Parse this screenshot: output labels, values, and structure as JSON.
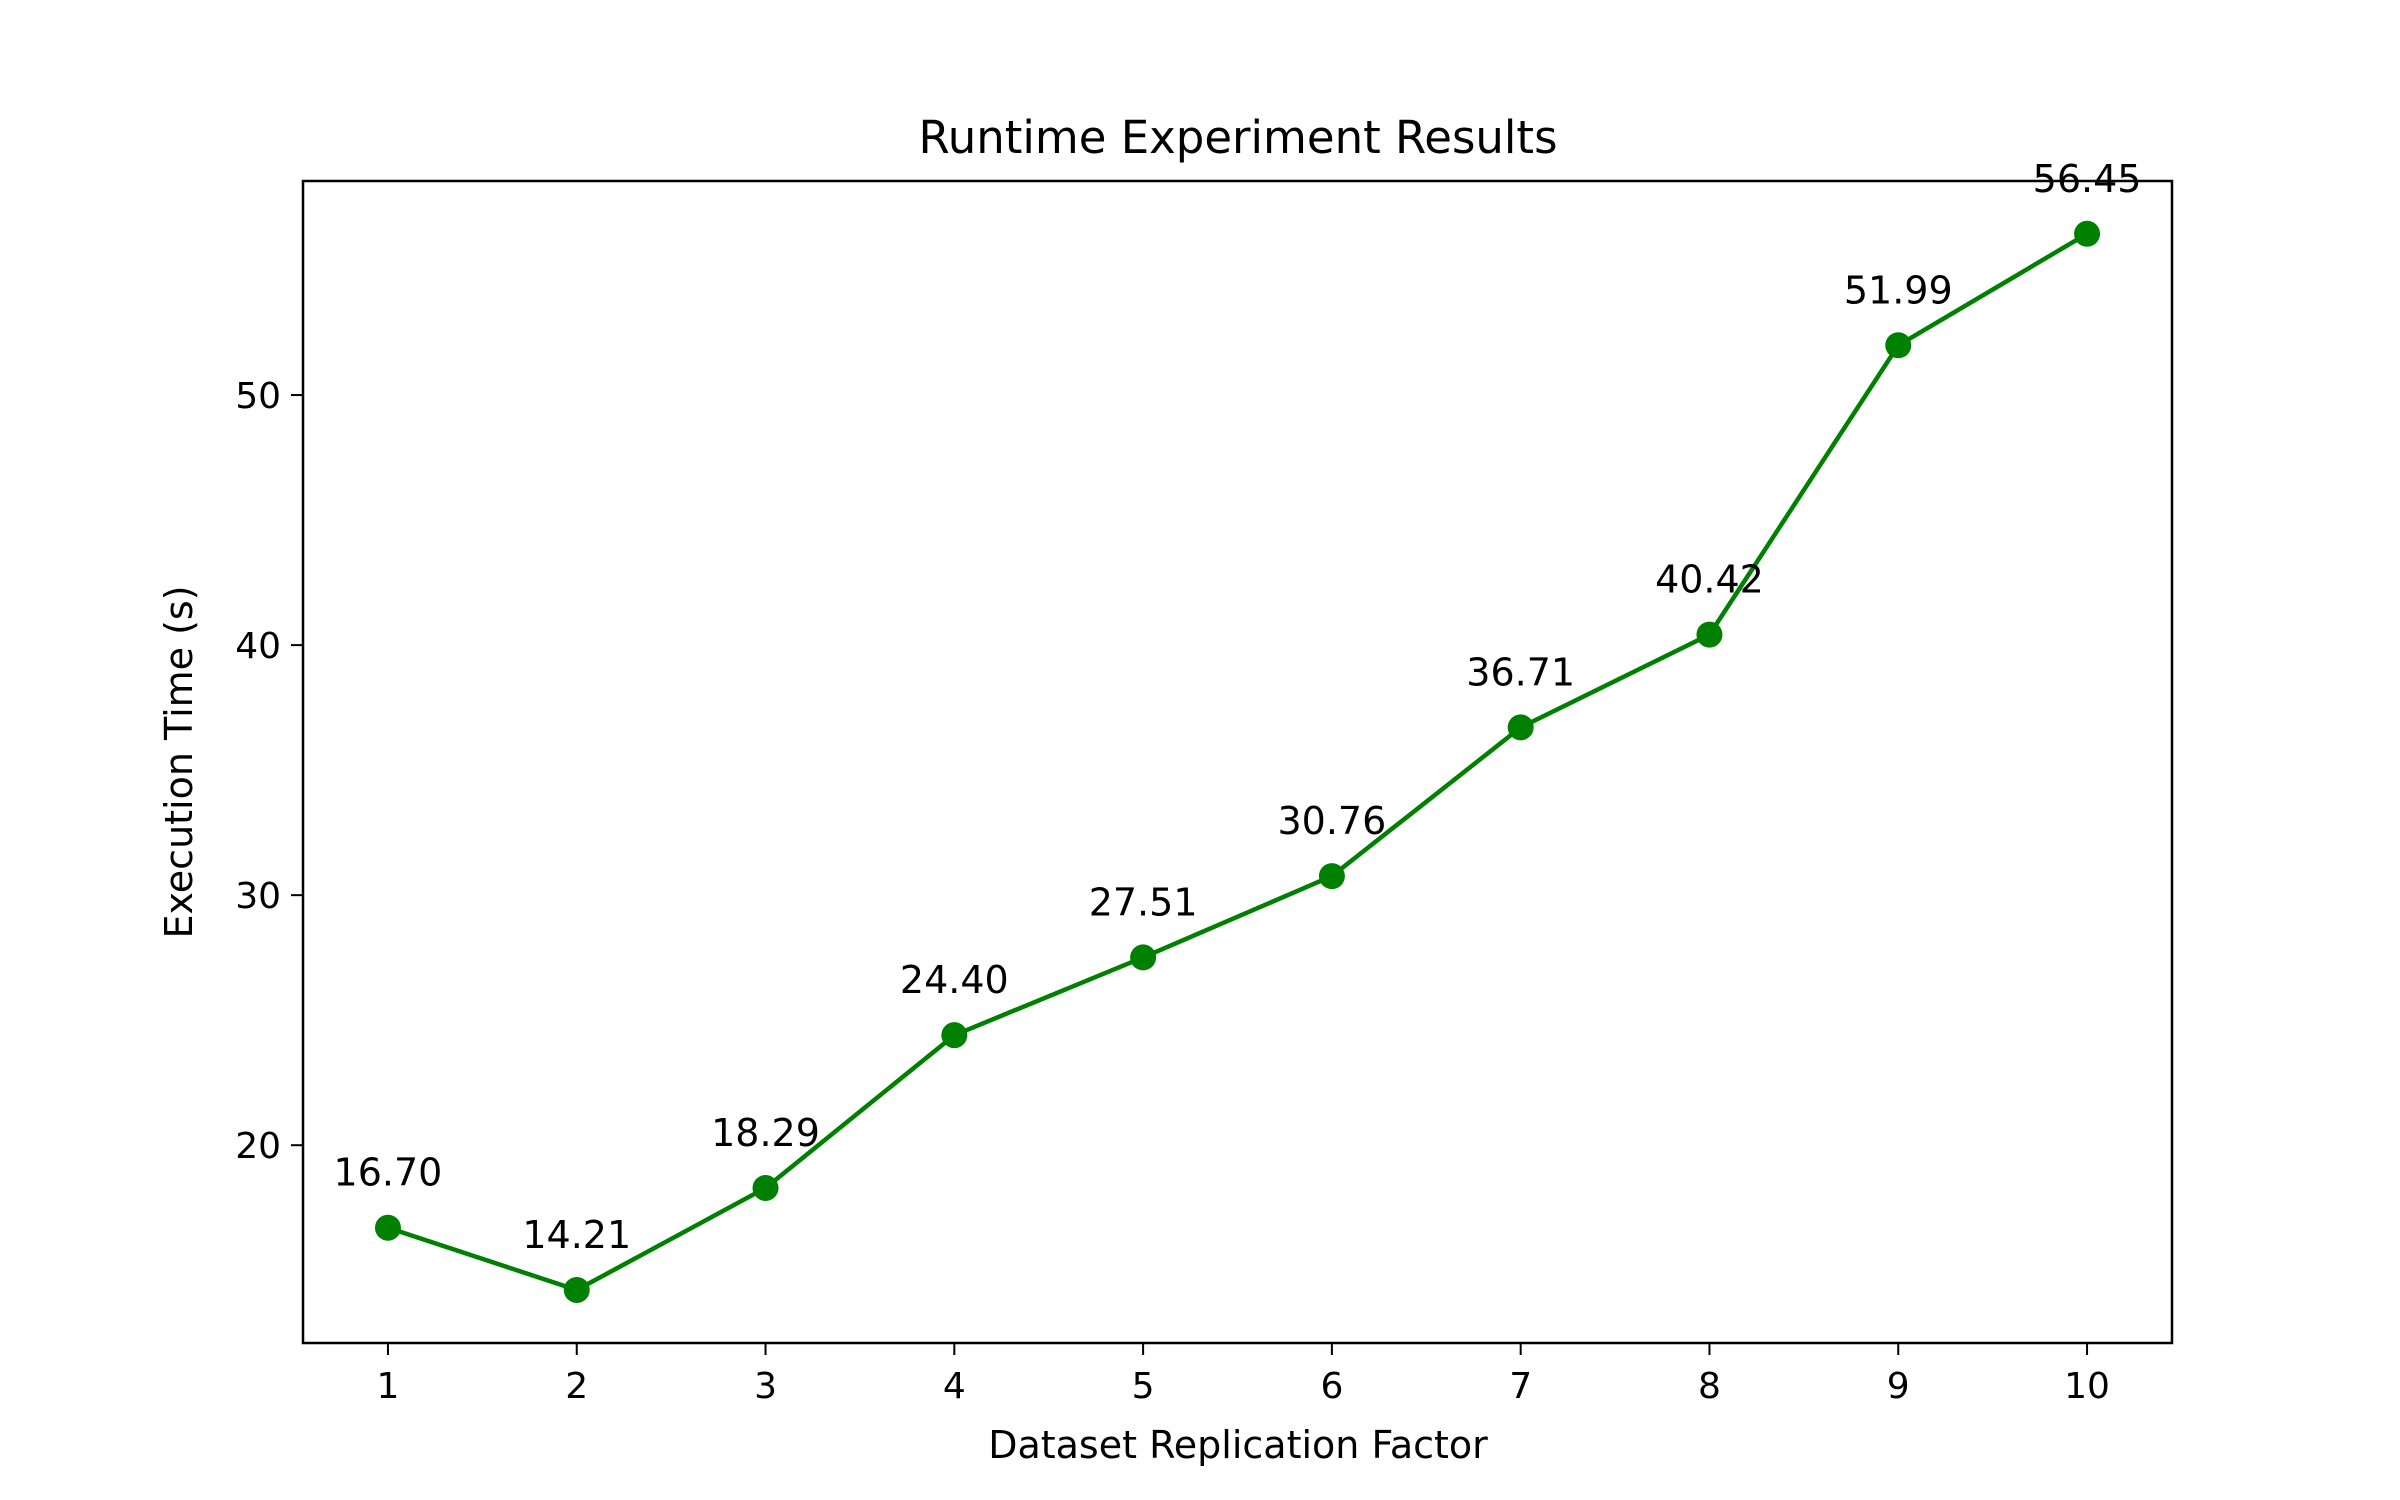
{
  "chart_data": {
    "type": "line",
    "title": "Runtime Experiment Results",
    "xlabel": "Dataset Replication Factor",
    "ylabel": "Execution Time (s)",
    "x": [
      1,
      2,
      3,
      4,
      5,
      6,
      7,
      8,
      9,
      10
    ],
    "x_tick_labels": [
      "1",
      "2",
      "3",
      "4",
      "5",
      "6",
      "7",
      "8",
      "9",
      "10"
    ],
    "y_ticks": [
      20,
      30,
      40,
      50
    ],
    "y_tick_labels": [
      "20",
      "30",
      "40",
      "50"
    ],
    "xlim": [
      0.55,
      10.45
    ],
    "ylim": [
      12.09,
      58.56
    ],
    "grid": false,
    "series": [
      {
        "values": [
          16.7,
          14.21,
          18.29,
          24.4,
          27.51,
          30.76,
          36.71,
          40.42,
          51.99,
          56.45
        ],
        "data_labels": [
          "16.70",
          "14.21",
          "18.29",
          "24.40",
          "27.51",
          "30.76",
          "36.71",
          "40.42",
          "51.99",
          "56.45"
        ],
        "color": "#008000",
        "marker": "circle"
      }
    ]
  }
}
